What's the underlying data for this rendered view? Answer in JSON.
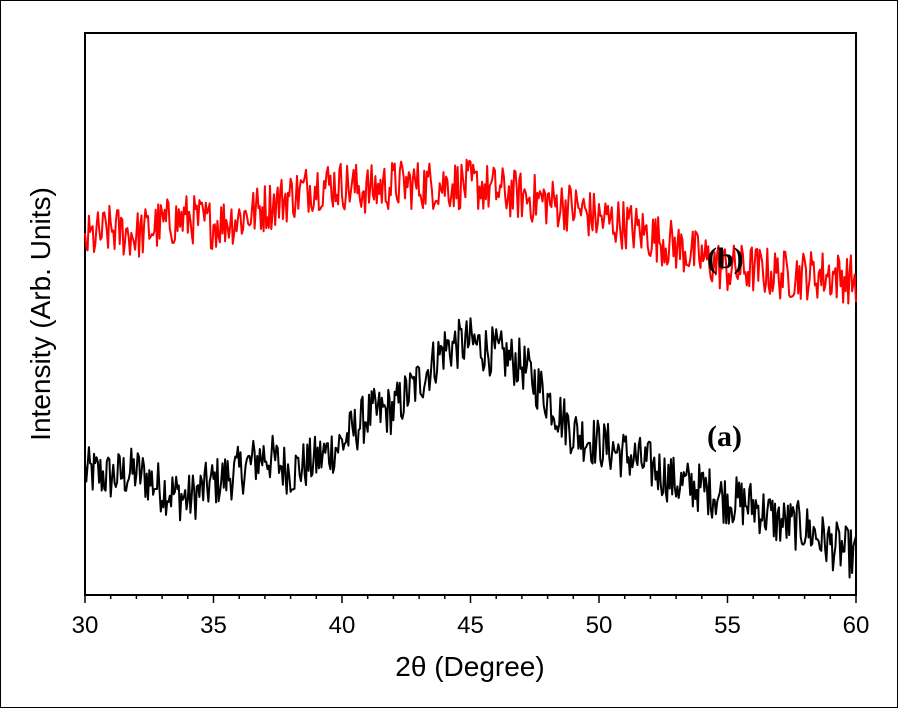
{
  "chart_data": {
    "type": "line",
    "xlabel": "2θ (Degree)",
    "ylabel": "Intensity (Arb. Units)",
    "xlim": [
      30,
      60
    ],
    "x_ticks": [
      30,
      35,
      40,
      45,
      50,
      55,
      60
    ],
    "y_ticks_labeled": false,
    "grid": false,
    "series": [
      {
        "name": "(a)",
        "color": "#000000",
        "x": [
          30,
          31,
          32,
          33,
          34,
          35,
          36,
          37,
          38,
          39,
          40,
          41,
          42,
          43,
          44,
          45,
          46,
          47,
          48,
          49,
          50,
          51,
          52,
          53,
          54,
          55,
          56,
          57,
          58,
          59,
          60
        ],
        "y": [
          0.22,
          0.21,
          0.22,
          0.19,
          0.17,
          0.2,
          0.22,
          0.25,
          0.22,
          0.24,
          0.27,
          0.32,
          0.33,
          0.38,
          0.44,
          0.45,
          0.43,
          0.41,
          0.35,
          0.29,
          0.27,
          0.25,
          0.23,
          0.2,
          0.19,
          0.17,
          0.16,
          0.13,
          0.12,
          0.09,
          0.07
        ]
      },
      {
        "name": "(b)",
        "color": "#ff0000",
        "x": [
          30,
          31,
          32,
          33,
          34,
          35,
          36,
          37,
          38,
          39,
          40,
          41,
          42,
          43,
          44,
          45,
          46,
          47,
          48,
          49,
          50,
          51,
          52,
          53,
          54,
          55,
          56,
          57,
          58,
          59,
          60
        ],
        "y": [
          0.63,
          0.65,
          0.64,
          0.66,
          0.67,
          0.66,
          0.67,
          0.69,
          0.71,
          0.73,
          0.73,
          0.72,
          0.73,
          0.73,
          0.73,
          0.73,
          0.72,
          0.71,
          0.7,
          0.69,
          0.67,
          0.66,
          0.64,
          0.62,
          0.6,
          0.58,
          0.58,
          0.57,
          0.57,
          0.57,
          0.56
        ]
      }
    ]
  }
}
